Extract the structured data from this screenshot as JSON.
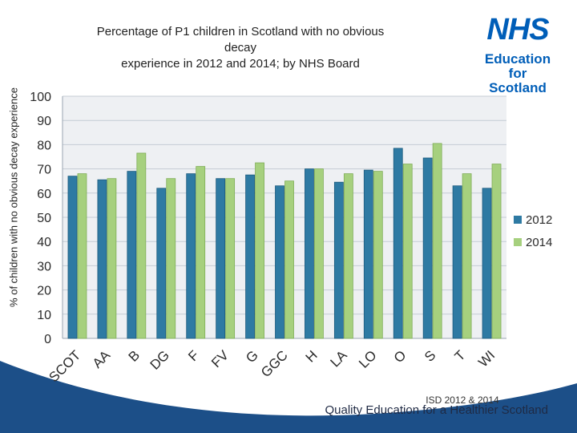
{
  "header": {
    "title_line1": "Percentage of P1 children in Scotland with no obvious decay",
    "title_line2": "experience in 2012 and 2014; by NHS Board"
  },
  "logo": {
    "name": "NHS",
    "line1": "Education",
    "line2": "for",
    "line3": "Scotland"
  },
  "footer": {
    "source": "ISD 2012 & 2014",
    "tagline": "Quality Education for a Healthier Scotland"
  },
  "colors": {
    "series_2012": "#2e7aa3",
    "series_2012_edge": "#1d5b7e",
    "series_2014": "#a6d07e",
    "series_2014_edge": "#7fad57",
    "plot_bg": "#eef0f3",
    "gridline": "#c4ccd5",
    "wave": "#1c4f88"
  },
  "chart_data": {
    "type": "bar",
    "title": "",
    "xlabel": "",
    "ylabel": "% of children with no obvious decay experience",
    "ylim": [
      0,
      100
    ],
    "yticks": [
      0,
      10,
      20,
      30,
      40,
      50,
      60,
      70,
      80,
      90,
      100
    ],
    "grid": true,
    "legend_position": "right",
    "categories": [
      "SCOT",
      "AA",
      "B",
      "DG",
      "F",
      "FV",
      "G",
      "GGC",
      "H",
      "LA",
      "LO",
      "O",
      "S",
      "T",
      "WI"
    ],
    "series": [
      {
        "name": "2012",
        "values": [
          67,
          65.5,
          69,
          62,
          68,
          66,
          67.5,
          63,
          70,
          64.5,
          69.5,
          78.5,
          74.5,
          63,
          62
        ]
      },
      {
        "name": "2014",
        "values": [
          68,
          66,
          76.5,
          66,
          71,
          66,
          72.5,
          65,
          70,
          68,
          69,
          72,
          80.5,
          68,
          72
        ]
      }
    ]
  }
}
